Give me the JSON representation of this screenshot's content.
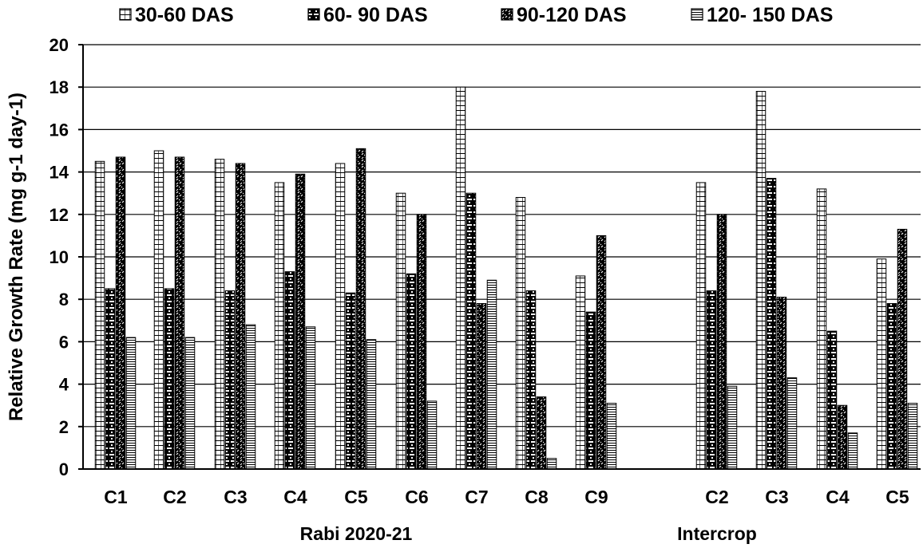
{
  "chart_data": {
    "type": "bar",
    "ylabel": "Relative Growth Rate (mg g-1 day-1)",
    "ylim": [
      0,
      20
    ],
    "yticks": [
      0,
      2,
      4,
      6,
      8,
      10,
      12,
      14,
      16,
      18,
      20
    ],
    "grid": true,
    "legend_position": "top",
    "groups": [
      {
        "label": "Rabi 2020-21",
        "categories": [
          "C1",
          "C2",
          "C3",
          "C4",
          "C5",
          "C6",
          "C7",
          "C8",
          "C9"
        ]
      },
      {
        "label": "Intercrop",
        "categories": [
          "C2",
          "C3",
          "C4",
          "C5"
        ]
      }
    ],
    "categories": [
      "C1",
      "C2",
      "C3",
      "C4",
      "C5",
      "C6",
      "C7",
      "C8",
      "C9",
      "C2",
      "C3",
      "C4",
      "C5"
    ],
    "series": [
      {
        "name": "30-60 DAS",
        "values": [
          14.5,
          15.0,
          14.6,
          13.5,
          14.4,
          13.0,
          18.0,
          12.8,
          9.1,
          13.5,
          17.8,
          13.2,
          9.9
        ]
      },
      {
        "name": "60- 90 DAS",
        "values": [
          8.5,
          8.5,
          8.4,
          9.3,
          8.3,
          9.2,
          13.0,
          8.4,
          7.4,
          8.4,
          13.7,
          6.5,
          7.8
        ]
      },
      {
        "name": "90-120 DAS",
        "values": [
          14.7,
          14.7,
          14.4,
          13.9,
          15.1,
          12.0,
          7.8,
          3.4,
          11.0,
          12.0,
          8.1,
          3.0,
          11.3
        ]
      },
      {
        "name": "120- 150 DAS",
        "values": [
          6.2,
          6.2,
          6.8,
          6.7,
          6.1,
          3.2,
          8.9,
          0.5,
          3.1,
          3.9,
          4.3,
          1.7,
          3.1
        ]
      }
    ]
  }
}
